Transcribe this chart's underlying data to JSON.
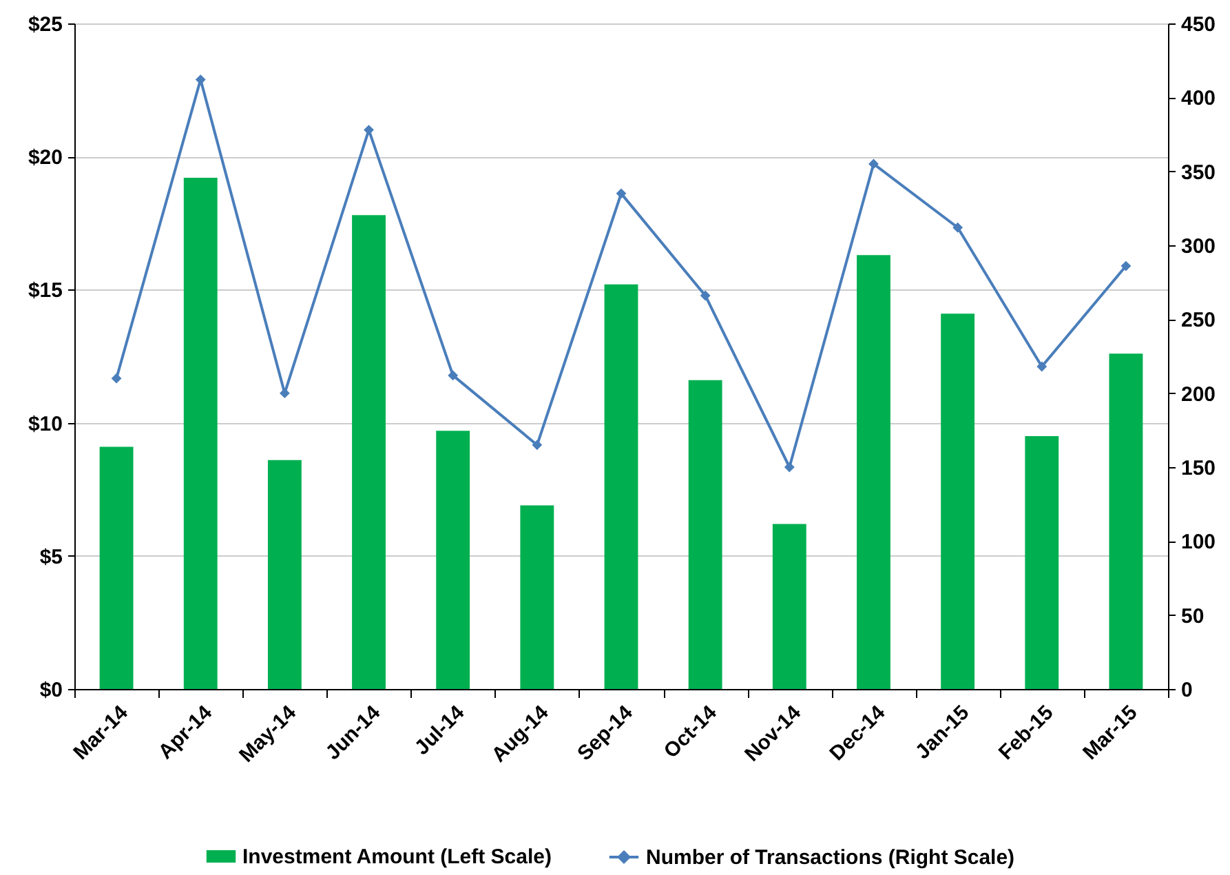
{
  "chart_data": {
    "type": "bar",
    "categories": [
      "Mar-14",
      "Apr-14",
      "May-14",
      "Jun-14",
      "Jul-14",
      "Aug-14",
      "Sep-14",
      "Oct-14",
      "Nov-14",
      "Dec-14",
      "Jan-15",
      "Feb-15",
      "Mar-15"
    ],
    "series": [
      {
        "name": "Investment Amount (Left Scale)",
        "color": "#00b050",
        "values": [
          9.1,
          19.2,
          8.6,
          17.8,
          9.7,
          6.9,
          15.2,
          11.6,
          6.2,
          16.3,
          14.1,
          9.5,
          12.6
        ]
      },
      {
        "name": "Number of Transactions (Right Scale)",
        "type": "line",
        "axis": "y2",
        "marker": "diamond",
        "line_style": "solid",
        "color": "#4a7ebb",
        "values": [
          210,
          412,
          200,
          378,
          212,
          165,
          335,
          266,
          150,
          355,
          312,
          218,
          286
        ]
      }
    ],
    "ylim": [
      0,
      25
    ],
    "yticks": [
      {
        "value": 0,
        "label": "$0"
      },
      {
        "value": 5,
        "label": "$5"
      },
      {
        "value": 10,
        "label": "$10"
      },
      {
        "value": 15,
        "label": "$15"
      },
      {
        "value": 20,
        "label": "$20"
      },
      {
        "value": 25,
        "label": "$25"
      }
    ],
    "y2lim": [
      0,
      450
    ],
    "y2ticks": [
      0,
      50,
      100,
      150,
      200,
      250,
      300,
      350,
      400,
      450
    ],
    "grid": "y",
    "legend": "bottom"
  }
}
